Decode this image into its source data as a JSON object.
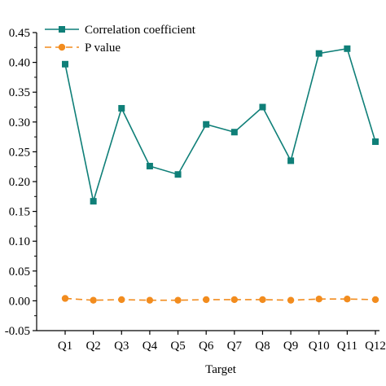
{
  "chart_data": {
    "type": "line",
    "title": "",
    "xlabel": "Target",
    "ylabel": "",
    "categories": [
      "Q1",
      "Q2",
      "Q3",
      "Q4",
      "Q5",
      "Q6",
      "Q7",
      "Q8",
      "Q9",
      "Q10",
      "Q11",
      "Q12"
    ],
    "ylim": [
      -0.05,
      0.45
    ],
    "yticks": [
      "-0.05",
      "0.00",
      "0.05",
      "0.10",
      "0.15",
      "0.20",
      "0.25",
      "0.30",
      "0.35",
      "0.40",
      "0.45"
    ],
    "grid": false,
    "legend_position": "top-left",
    "series": [
      {
        "name": "Correlation coefficient",
        "color": "#0f7f78",
        "marker": "square",
        "line_style": "solid",
        "values": [
          0.397,
          0.167,
          0.323,
          0.226,
          0.212,
          0.296,
          0.283,
          0.325,
          0.235,
          0.415,
          0.423,
          0.267
        ]
      },
      {
        "name": "P value",
        "color": "#f28c1e",
        "marker": "circle",
        "line_style": "dashed",
        "values": [
          0.004,
          0.001,
          0.002,
          0.001,
          0.001,
          0.002,
          0.002,
          0.002,
          0.001,
          0.003,
          0.003,
          0.002
        ]
      }
    ]
  }
}
